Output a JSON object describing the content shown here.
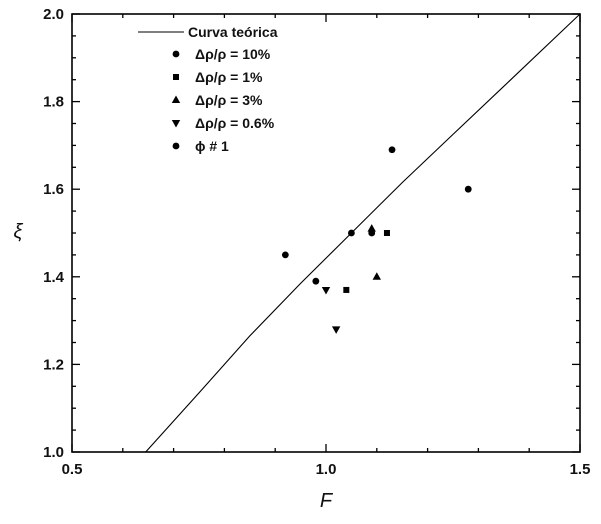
{
  "chart_data": {
    "type": "scatter",
    "xlabel": "F",
    "ylabel": "ξ",
    "xlim": [
      0.5,
      1.5
    ],
    "ylim": [
      1.0,
      2.0
    ],
    "x_ticks": [
      "0.5",
      "1.0",
      "1.5"
    ],
    "y_ticks": [
      "1.0",
      "1.2",
      "1.4",
      "1.6",
      "1.8",
      "2.0"
    ],
    "grid": false,
    "legend_position": "top-left",
    "curve": {
      "name": "Curva teórica",
      "points": [
        [
          0.645,
          1.0
        ],
        [
          0.75,
          1.135
        ],
        [
          0.85,
          1.265
        ],
        [
          0.95,
          1.385
        ],
        [
          1.05,
          1.5
        ],
        [
          1.15,
          1.615
        ],
        [
          1.25,
          1.725
        ],
        [
          1.35,
          1.835
        ],
        [
          1.5,
          2.0
        ]
      ]
    },
    "series": [
      {
        "name": "Δρ/ρ = 10%",
        "marker": "circle",
        "points": [
          [
            0.92,
            1.45
          ],
          [
            1.05,
            1.5
          ],
          [
            1.13,
            1.69
          ],
          [
            1.28,
            1.6
          ]
        ]
      },
      {
        "name": "Δρ/ρ = 1%",
        "marker": "square",
        "points": [
          [
            1.04,
            1.37
          ],
          [
            1.12,
            1.5
          ]
        ]
      },
      {
        "name": "Δρ/ρ = 3%",
        "marker": "triangle-up",
        "points": [
          [
            1.1,
            1.4
          ],
          [
            1.09,
            1.51
          ]
        ]
      },
      {
        "name": "Δρ/ρ = 0.6%",
        "marker": "triangle-down",
        "points": [
          [
            1.0,
            1.37
          ],
          [
            1.02,
            1.28
          ]
        ]
      },
      {
        "name": "ϕ # 1",
        "marker": "circle",
        "points": [
          [
            0.98,
            1.39
          ],
          [
            1.09,
            1.5
          ]
        ]
      }
    ]
  }
}
